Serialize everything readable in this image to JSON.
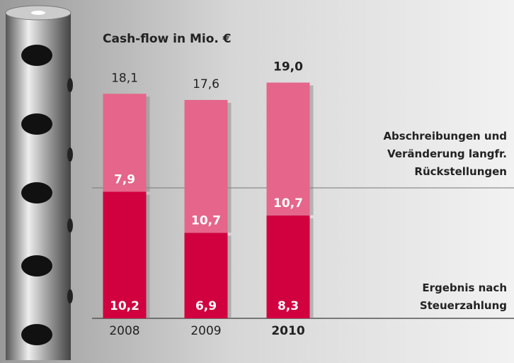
{
  "chart_data": {
    "type": "stacked-bar",
    "title": "Cash-flow in Mio. €",
    "categories": [
      "2008",
      "2009",
      "2010"
    ],
    "series": [
      {
        "name": "Ergebnis nach\nSteuerzahlung",
        "color": "#d1003f",
        "values": [
          10.2,
          6.9,
          8.3
        ],
        "value_labels": [
          "10,2",
          "6,9",
          "8,3"
        ]
      },
      {
        "name": "Abschreibungen und\nVeränderung langfr.\nRückstellungen",
        "color": "#e5668a",
        "values": [
          7.9,
          10.7,
          10.7
        ],
        "value_labels": [
          "7,9",
          "10,7",
          "10,7"
        ]
      }
    ],
    "totals": [
      18.1,
      17.6,
      19.0
    ],
    "total_labels": [
      "18,1",
      "17,6",
      "19,0"
    ]
  }
}
